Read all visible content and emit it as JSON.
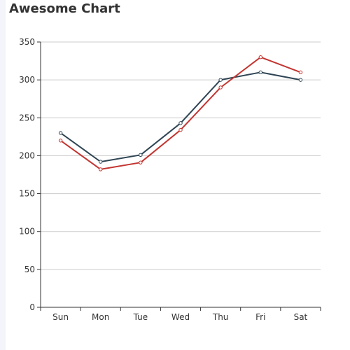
{
  "chart_data": {
    "type": "line",
    "title": "Awesome Chart",
    "xlabel": "",
    "ylabel": "",
    "categories": [
      "Sun",
      "Mon",
      "Tue",
      "Wed",
      "Thu",
      "Fri",
      "Sat"
    ],
    "yticks": [
      0,
      50,
      100,
      150,
      200,
      250,
      300,
      350
    ],
    "ylim": [
      0,
      350
    ],
    "grid": true,
    "legend": "none",
    "series": [
      {
        "values": [
          230,
          192,
          201,
          243,
          300,
          310,
          300
        ],
        "color": "#2f4554"
      },
      {
        "values": [
          220,
          182,
          191,
          234,
          290,
          330,
          310
        ],
        "color": "#c23531"
      }
    ]
  }
}
